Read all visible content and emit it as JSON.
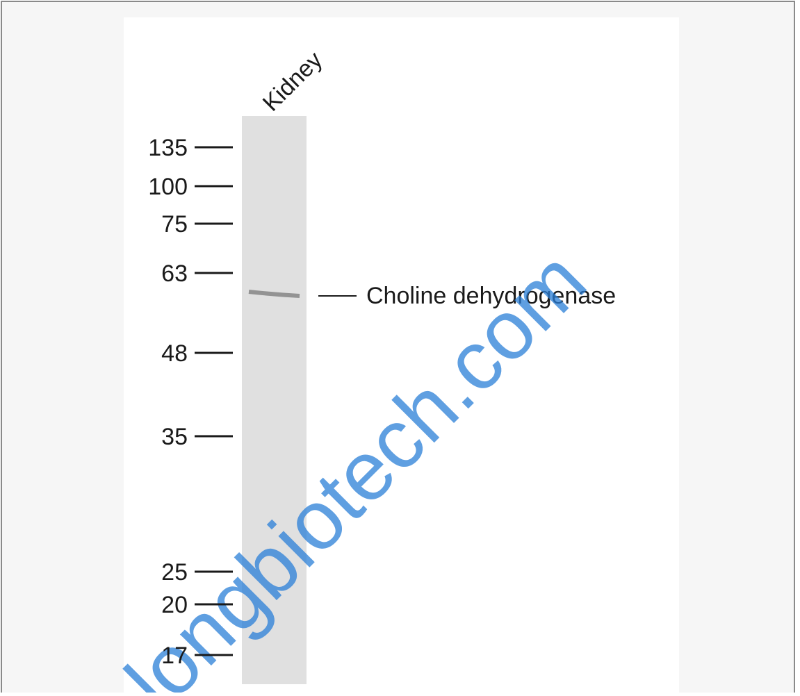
{
  "lane_label": "Kidney",
  "markers": [
    135,
    100,
    75,
    63,
    48,
    35,
    25,
    20,
    17
  ],
  "band_label": "Choline dehydrogenase",
  "watermark": "longbiotech.com"
}
